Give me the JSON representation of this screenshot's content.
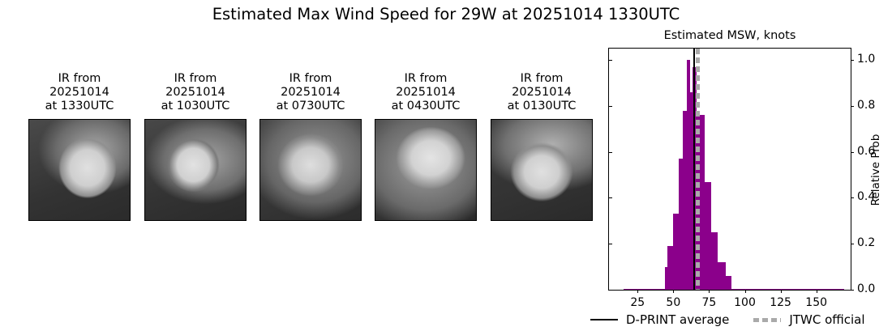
{
  "figure": {
    "title": "Estimated Max Wind Speed for 29W at 20251014 1330UTC"
  },
  "ir_panels": [
    {
      "title": "IR from\n20251014\nat 1330UTC",
      "label_line1": "IR from",
      "date": "20251014",
      "time": "at 1330UTC"
    },
    {
      "title": "IR from\n20251014\nat 1030UTC",
      "label_line1": "IR from",
      "date": "20251014",
      "time": "at 1030UTC"
    },
    {
      "title": "IR from\n20251014\nat 0730UTC",
      "label_line1": "IR from",
      "date": "20251014",
      "time": "at 0730UTC"
    },
    {
      "title": "IR from\n20251014\nat 0430UTC",
      "label_line1": "IR from",
      "date": "20251014",
      "time": "at 0430UTC"
    },
    {
      "title": "IR from\n20251014\nat 0130UTC",
      "label_line1": "IR from",
      "date": "20251014",
      "time": "at 0130UTC"
    }
  ],
  "chart_data": {
    "type": "bar",
    "title": "Estimated MSW, knots",
    "xlabel": "",
    "ylabel": "Relative Prob",
    "xlim": [
      5,
      174
    ],
    "ylim": [
      0.0,
      1.05
    ],
    "xticks": [
      25,
      50,
      75,
      100,
      125,
      150
    ],
    "yticks": [
      0.0,
      0.2,
      0.4,
      0.6,
      0.8,
      1.0
    ],
    "ytick_labels": [
      "0.0",
      "0.2",
      "0.4",
      "0.6",
      "0.8",
      "1.0"
    ],
    "grid": false,
    "bar_color": "#8b008b",
    "bins": [
      {
        "x0": 15.3,
        "x1": 44.0,
        "value": 0.005
      },
      {
        "x0": 44.0,
        "x1": 45.8,
        "value": 0.1
      },
      {
        "x0": 45.8,
        "x1": 49.7,
        "value": 0.19
      },
      {
        "x0": 49.7,
        "x1": 53.7,
        "value": 0.33
      },
      {
        "x0": 53.7,
        "x1": 56.5,
        "value": 0.57
      },
      {
        "x0": 56.5,
        "x1": 59.3,
        "value": 0.78
      },
      {
        "x0": 59.3,
        "x1": 61.6,
        "value": 1.0
      },
      {
        "x0": 61.6,
        "x1": 63.3,
        "value": 0.86
      },
      {
        "x0": 63.3,
        "x1": 66.1,
        "value": 0.97
      },
      {
        "x0": 66.1,
        "x1": 71.8,
        "value": 0.76
      },
      {
        "x0": 71.8,
        "x1": 76.3,
        "value": 0.47
      },
      {
        "x0": 76.3,
        "x1": 80.8,
        "value": 0.25
      },
      {
        "x0": 80.8,
        "x1": 86.4,
        "value": 0.12
      },
      {
        "x0": 86.4,
        "x1": 90.4,
        "value": 0.06
      },
      {
        "x0": 90.4,
        "x1": 169.5,
        "value": 0.005
      }
    ],
    "lines": [
      {
        "name": "D-PRINT average",
        "x": 64.4,
        "style": "solid",
        "color": "#000000"
      },
      {
        "name": "JTWC official",
        "x": 67,
        "style": "dotted",
        "color": "#aaaaaa"
      }
    ],
    "legend": {
      "position": "below",
      "entries": [
        "D-PRINT average",
        "JTWC official"
      ]
    }
  }
}
